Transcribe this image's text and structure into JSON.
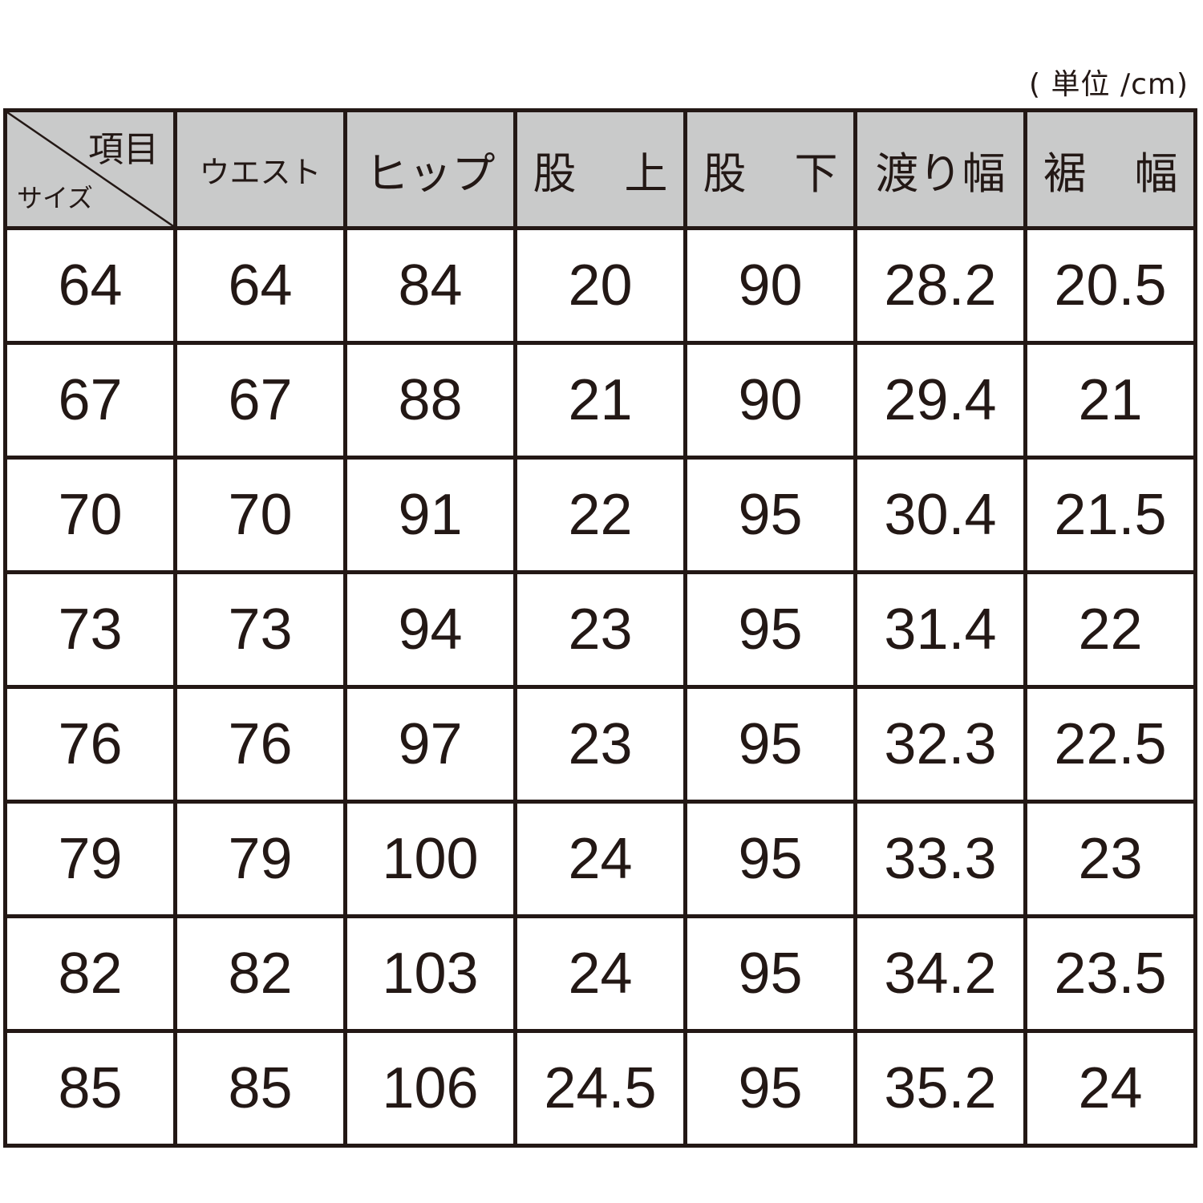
{
  "unit_label": "( 単位 /cm)",
  "header": {
    "corner_top": "項目",
    "corner_bottom": "サイズ",
    "columns": [
      {
        "a": "ウエスト"
      },
      {
        "a": "ヒップ"
      },
      {
        "a": "股",
        "b": "上"
      },
      {
        "a": "股",
        "b": "下"
      },
      {
        "a": "渡り幅"
      },
      {
        "a": "裾",
        "b": "幅"
      }
    ]
  },
  "rows": [
    [
      "64",
      "64",
      "84",
      "20",
      "90",
      "28.2",
      "20.5"
    ],
    [
      "67",
      "67",
      "88",
      "21",
      "90",
      "29.4",
      "21"
    ],
    [
      "70",
      "70",
      "91",
      "22",
      "95",
      "30.4",
      "21.5"
    ],
    [
      "73",
      "73",
      "94",
      "23",
      "95",
      "31.4",
      "22"
    ],
    [
      "76",
      "76",
      "97",
      "23",
      "95",
      "32.3",
      "22.5"
    ],
    [
      "79",
      "79",
      "100",
      "24",
      "95",
      "33.3",
      "23"
    ],
    [
      "82",
      "82",
      "103",
      "24",
      "95",
      "34.2",
      "23.5"
    ],
    [
      "85",
      "85",
      "106",
      "24.5",
      "95",
      "35.2",
      "24"
    ]
  ],
  "colors": {
    "border": "#231815",
    "header_bg": "#c9caca"
  }
}
